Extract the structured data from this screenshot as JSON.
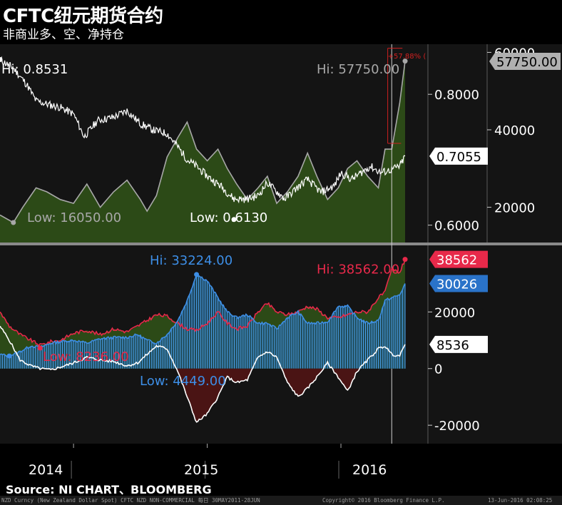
{
  "header": {
    "title": "CFTC纽元期货合约",
    "subtitle": "非商业多、空、净持仓"
  },
  "source_label": "Source: NI CHART、BLOOMBERG",
  "footer": {
    "left": "NZD Curncy (New Zealand Dollar Spot) CFTC NZD NON-COMMERCIAL  每日 30MAY2011-28JUN",
    "center": "Copyright© 2016 Bloomberg Finance L.P.",
    "right": "13-Jun-2016 02:08:25"
  },
  "colors": {
    "background": "#000000",
    "grid": "#5a5a5a",
    "price": "#ffffff",
    "net_long": "#ffffff",
    "open_interest": "#a8a8a8",
    "open_interest_fill": "#2c4a17",
    "longs": "#e8294a",
    "shorts": "#3d8ee6",
    "net_negative_fill": "#4a1414",
    "change_marker": "#d02020"
  },
  "chart_data": [
    {
      "type": "line",
      "panel": "upper",
      "x_ticks": [
        "2014",
        "2015",
        "2016"
      ],
      "axes": {
        "left": {
          "ticks": [
            "0.8000",
            "0.6000"
          ],
          "ylim": [
            0.58,
            0.87
          ]
        },
        "right": {
          "ticks": [
            "60000",
            "40000",
            "20000"
          ],
          "ylim": [
            12000,
            61000
          ]
        }
      },
      "series": [
        {
          "axis": "left",
          "style": "line",
          "color": "#ffffff",
          "x": [
            2013.45,
            2013.55,
            2013.65,
            2013.72,
            2013.8,
            2013.9,
            2014.0,
            2014.08,
            2014.18,
            2014.3,
            2014.4,
            2014.5,
            2014.6,
            2014.7,
            2014.78,
            2014.85,
            2014.92,
            2015.0,
            2015.1,
            2015.2,
            2015.3,
            2015.38,
            2015.45,
            2015.5,
            2015.58,
            2015.66,
            2015.75,
            2015.85,
            2015.95,
            2016.0,
            2016.08,
            2016.15,
            2016.22,
            2016.3,
            2016.38,
            2016.44,
            2016.48
          ],
          "y": [
            0.853,
            0.84,
            0.815,
            0.79,
            0.785,
            0.78,
            0.77,
            0.735,
            0.76,
            0.765,
            0.775,
            0.755,
            0.745,
            0.74,
            0.72,
            0.7,
            0.69,
            0.675,
            0.66,
            0.64,
            0.64,
            0.645,
            0.665,
            0.655,
            0.64,
            0.655,
            0.67,
            0.65,
            0.66,
            0.68,
            0.67,
            0.68,
            0.69,
            0.68,
            0.685,
            0.69,
            0.7055
          ]
        },
        {
          "axis": "right",
          "style": "area",
          "color": "#a8a8a8",
          "x": [
            2013.45,
            2013.55,
            2013.62,
            2013.72,
            2013.8,
            2013.9,
            2014.0,
            2014.1,
            2014.2,
            2014.3,
            2014.4,
            2014.5,
            2014.55,
            2014.62,
            2014.7,
            2014.78,
            2014.85,
            2014.92,
            2015.0,
            2015.08,
            2015.15,
            2015.22,
            2015.3,
            2015.38,
            2015.45,
            2015.52,
            2015.6,
            2015.68,
            2015.75,
            2015.82,
            2015.9,
            2015.98,
            2016.05,
            2016.12,
            2016.2,
            2016.28,
            2016.33,
            2016.38,
            2016.44,
            2016.48
          ],
          "y": [
            18000,
            16050,
            20000,
            25000,
            24000,
            22000,
            21000,
            26000,
            20000,
            24000,
            27000,
            22000,
            19000,
            23000,
            33000,
            38000,
            42000,
            35000,
            32000,
            35000,
            30000,
            26000,
            22000,
            25000,
            28000,
            21000,
            24000,
            28000,
            34000,
            28000,
            22000,
            25000,
            30000,
            32000,
            28000,
            25000,
            35000,
            35000,
            47000,
            57750
          ]
        }
      ],
      "annotations": [
        {
          "text": "Hi: 0.8531",
          "axis": "left",
          "x": 2013.45,
          "y": 0.8531
        },
        {
          "text": "Low: 0.6130",
          "axis": "left",
          "x": 2015.2,
          "y": 0.613
        },
        {
          "text": "Hi: 57750.00",
          "axis": "right",
          "x": 2016.48,
          "y": 57750
        },
        {
          "text": "Low: 16050.00",
          "axis": "right",
          "x": 2013.55,
          "y": 16050
        },
        {
          "text": "+57.88% (",
          "from": {
            "x": 2016.38,
            "y": 36500
          },
          "to": {
            "x": 2016.38,
            "y": 57750
          }
        }
      ],
      "last_value_tags": [
        {
          "text": "57750.00",
          "axis": "right",
          "y": 57750,
          "color": "#a8a8a8"
        },
        {
          "text": "0.7055",
          "axis": "left",
          "y": 0.7055,
          "color": "#ffffff"
        }
      ]
    },
    {
      "type": "line",
      "panel": "lower",
      "x_ticks": [
        "2014",
        "2015",
        "2016"
      ],
      "axes": {
        "right": {
          "ticks": [
            "20000",
            "0",
            "-20000"
          ],
          "ylim": [
            -25000,
            42000
          ]
        }
      },
      "series": [
        {
          "name_tag": "38562",
          "color": "#e8294a",
          "style": "line",
          "x": [
            2013.45,
            2013.52,
            2013.6,
            2013.68,
            2013.75,
            2013.83,
            2013.9,
            2014.0,
            2014.1,
            2014.2,
            2014.3,
            2014.4,
            2014.48,
            2014.55,
            2014.62,
            2014.7,
            2014.78,
            2014.85,
            2014.92,
            2015.0,
            2015.08,
            2015.15,
            2015.22,
            2015.3,
            2015.38,
            2015.45,
            2015.52,
            2015.6,
            2015.68,
            2015.75,
            2015.82,
            2015.9,
            2015.98,
            2016.05,
            2016.12,
            2016.2,
            2016.28,
            2016.33,
            2016.38,
            2016.44,
            2016.48
          ],
          "y": [
            20000,
            15000,
            12000,
            10000,
            8236,
            9500,
            10000,
            12500,
            13500,
            12000,
            14000,
            13000,
            15000,
            17000,
            19000,
            18500,
            16000,
            14000,
            13500,
            16000,
            20000,
            16000,
            14000,
            15000,
            20000,
            23000,
            20000,
            19000,
            20000,
            22000,
            21000,
            18000,
            18000,
            19000,
            20000,
            20000,
            25000,
            27000,
            35000,
            34000,
            38562
          ]
        },
        {
          "name_tag": "30026",
          "color": "#3d8ee6",
          "style": "line-with-bars",
          "x": [
            2013.45,
            2013.52,
            2013.6,
            2013.68,
            2013.75,
            2013.83,
            2013.9,
            2014.0,
            2014.1,
            2014.2,
            2014.3,
            2014.4,
            2014.48,
            2014.55,
            2014.62,
            2014.7,
            2014.78,
            2014.85,
            2014.92,
            2015.0,
            2015.08,
            2015.15,
            2015.22,
            2015.3,
            2015.38,
            2015.45,
            2015.52,
            2015.6,
            2015.68,
            2015.75,
            2015.82,
            2015.9,
            2015.98,
            2016.05,
            2016.12,
            2016.2,
            2016.28,
            2016.33,
            2016.38,
            2016.44,
            2016.48
          ],
          "y": [
            5000,
            4449,
            6000,
            8000,
            7500,
            9000,
            9500,
            10000,
            9000,
            10500,
            11000,
            11000,
            12000,
            10000,
            9000,
            12000,
            17000,
            24000,
            33224,
            31000,
            25000,
            20000,
            18000,
            19000,
            16000,
            16000,
            14000,
            18000,
            20000,
            16000,
            16000,
            16500,
            22000,
            22000,
            18000,
            16000,
            17000,
            24000,
            25000,
            26000,
            30026
          ]
        },
        {
          "name_tag": "8536",
          "color": "#ffffff",
          "style": "net-area",
          "x": [
            2013.45,
            2013.52,
            2013.6,
            2013.68,
            2013.75,
            2013.83,
            2013.9,
            2014.0,
            2014.1,
            2014.2,
            2014.3,
            2014.4,
            2014.48,
            2014.55,
            2014.62,
            2014.7,
            2014.78,
            2014.85,
            2014.92,
            2015.0,
            2015.08,
            2015.15,
            2015.22,
            2015.3,
            2015.38,
            2015.45,
            2015.52,
            2015.6,
            2015.68,
            2015.75,
            2015.82,
            2015.9,
            2015.98,
            2016.05,
            2016.12,
            2016.2,
            2016.28,
            2016.33,
            2016.38,
            2016.44,
            2016.48
          ],
          "y": [
            15000,
            10000,
            3000,
            1000,
            0,
            -500,
            500,
            2000,
            4000,
            3000,
            2500,
            1000,
            2000,
            5000,
            8000,
            7000,
            -1000,
            -10000,
            -19000,
            -16000,
            -10000,
            -3000,
            -5000,
            -4000,
            4000,
            6000,
            4000,
            -5000,
            -10000,
            -7000,
            -3000,
            2000,
            -3000,
            -8000,
            -1000,
            3000,
            7000,
            8000,
            5000,
            4500,
            8536
          ]
        }
      ],
      "annotations": [
        {
          "text": "Hi: 33224.00",
          "x": 2014.92,
          "y": 33224,
          "color": "#3d8ee6"
        },
        {
          "text": "Hi: 38562.00",
          "x": 2016.48,
          "y": 38562,
          "color": "#e8294a"
        },
        {
          "text": "Low: 8236.00",
          "x": 2013.75,
          "y": 8236,
          "color": "#e8294a"
        },
        {
          "text": "Low: 4449.00",
          "x": 2013.52,
          "y": 4449,
          "color": "#3d8ee6"
        }
      ],
      "last_value_tags": [
        {
          "text": "38562",
          "y": 38562,
          "color": "#e8294a"
        },
        {
          "text": "30026",
          "y": 30026,
          "color": "#3d8ee6"
        },
        {
          "text": "8536",
          "y": 8536,
          "color": "#ffffff"
        }
      ]
    }
  ]
}
